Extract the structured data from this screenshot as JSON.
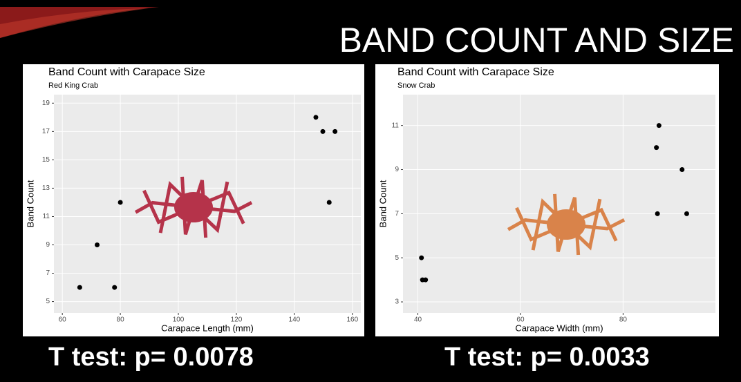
{
  "slide": {
    "title": "BAND COUNT AND SIZE",
    "captions": [
      "T test: p= 0.0078",
      "T test: p= 0.0033"
    ]
  },
  "chart_data": [
    {
      "type": "scatter",
      "title": "Band Count with Carapace Size",
      "subtitle": "Red King Crab",
      "x_label": "Carapace Length (mm)",
      "y_label": "Band Count",
      "x": [
        66,
        72,
        78,
        80,
        147.4,
        149.8,
        154,
        152
      ],
      "values": [
        6,
        9,
        6,
        12,
        18,
        17,
        17,
        12
      ],
      "color": "#000000",
      "xlim": [
        57.1,
        162.9
      ],
      "ylim": [
        4.2,
        19.6
      ],
      "xticks": [
        60,
        80,
        100,
        120,
        140,
        160
      ],
      "yticks": [
        5,
        7,
        9,
        11,
        13,
        15,
        17,
        19
      ],
      "grid": true
    },
    {
      "type": "scatter",
      "title": "Band Count with Carapace Size",
      "subtitle": "Snow Crab",
      "x_label": "Carapace Width (mm)",
      "y_label": "Band Count",
      "x": [
        40.7,
        40.9,
        41.5,
        87,
        86.5,
        91.5,
        86.7,
        92.4
      ],
      "values": [
        5,
        4,
        4,
        11,
        10,
        9,
        7,
        7
      ],
      "color": "#000000",
      "xlim": [
        37.1,
        98
      ],
      "ylim": [
        2.5,
        12.4
      ],
      "xticks": [
        40,
        60,
        80
      ],
      "yticks": [
        3,
        5,
        7,
        9,
        11
      ],
      "grid": true
    }
  ]
}
